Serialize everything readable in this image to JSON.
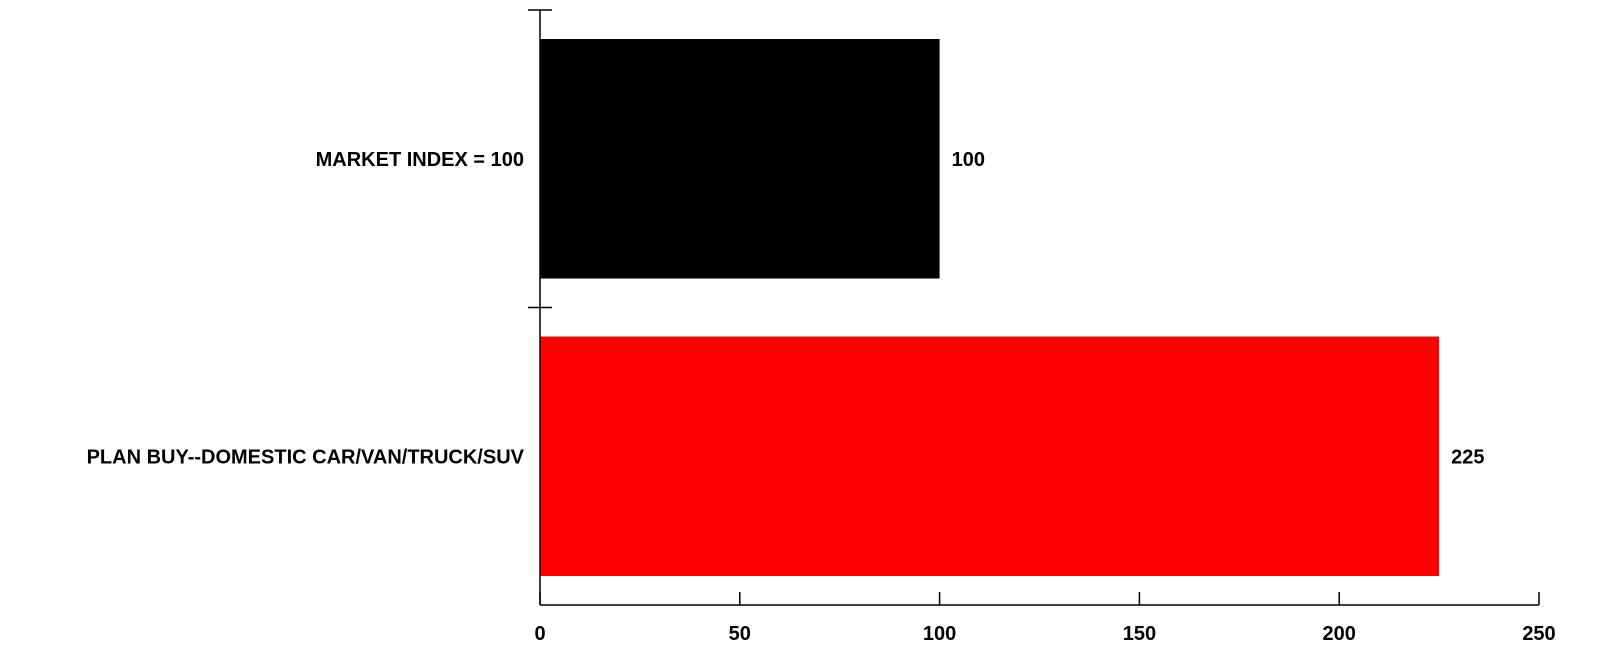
{
  "chart_data": {
    "type": "bar",
    "orientation": "horizontal",
    "categories": [
      "MARKET INDEX = 100",
      "PLAN BUY--DOMESTIC CAR/VAN/TRUCK/SUV"
    ],
    "values": [
      100,
      225
    ],
    "value_labels": [
      "100",
      "225"
    ],
    "colors": [
      "#000000",
      "#ff0000"
    ],
    "xlim": [
      0,
      250
    ],
    "x_ticks": [
      0,
      50,
      100,
      150,
      200,
      250
    ],
    "title": "",
    "xlabel": "",
    "ylabel": "",
    "grid": false,
    "legend": "none"
  }
}
